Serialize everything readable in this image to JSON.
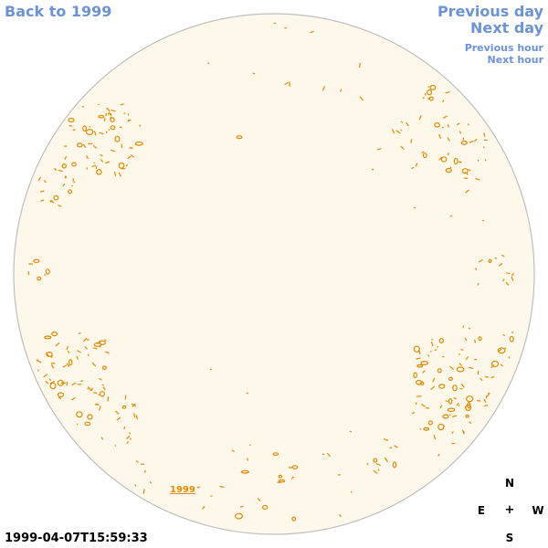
{
  "nav": {
    "back": "Back to 1999",
    "previous_day": "Previous day",
    "next_day": "Next day",
    "previous_hour": "Previous hour",
    "next_hour": "Next hour"
  },
  "sky": {
    "year_label": "1999",
    "colors": {
      "disk": "#fdf8ea",
      "outline": "#bfbfbf",
      "marks": "#e08a00",
      "links": "#6b93d6"
    }
  },
  "compass": {
    "north": "N",
    "south": "S",
    "east": "E",
    "west": "W",
    "center": "+"
  },
  "timestamp": "1999-04-07T15:59:33"
}
